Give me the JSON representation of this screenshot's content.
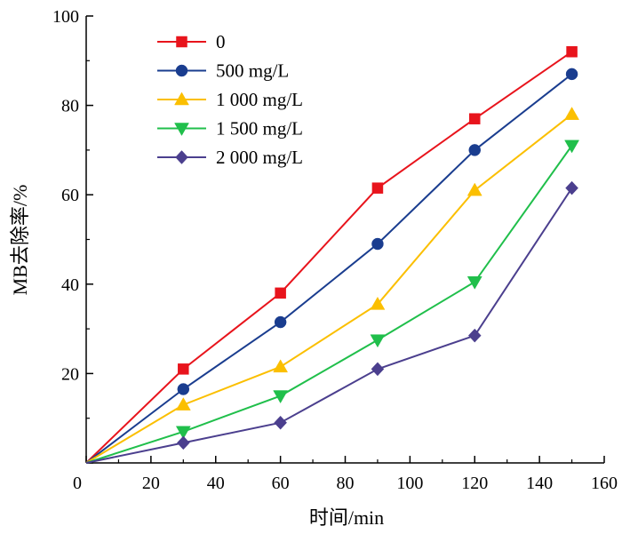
{
  "chart_data": {
    "type": "line",
    "title": "",
    "xlabel": "时间/min",
    "ylabel": "MB去除率/%",
    "xlim": [
      0,
      160
    ],
    "ylim": [
      0,
      100
    ],
    "x_ticks": [
      0,
      20,
      40,
      60,
      80,
      100,
      120,
      140,
      160
    ],
    "y_ticks": [
      20,
      40,
      60,
      80,
      100
    ],
    "grid": false,
    "legend_position": "top-left",
    "x": [
      0,
      30,
      60,
      90,
      120,
      150
    ],
    "series": [
      {
        "name": "0",
        "color": "#e8141c",
        "marker": "square",
        "values": [
          0,
          21,
          38,
          61.5,
          77,
          92
        ]
      },
      {
        "name": "500 mg/L",
        "color": "#1a3d8f",
        "marker": "circle",
        "values": [
          0,
          16.5,
          31.5,
          49,
          70,
          87
        ]
      },
      {
        "name": "1 000 mg/L",
        "color": "#fbbf00",
        "marker": "triangle-up",
        "values": [
          0,
          13,
          21.5,
          35.5,
          61,
          78
        ]
      },
      {
        "name": "1 500 mg/L",
        "color": "#20bf4b",
        "marker": "triangle-down",
        "values": [
          0,
          7,
          15,
          27.5,
          40.5,
          71
        ]
      },
      {
        "name": "2 000 mg/L",
        "color": "#4b3f8e",
        "marker": "diamond",
        "values": [
          0,
          4.5,
          9,
          21,
          28.5,
          61.5
        ]
      }
    ]
  }
}
